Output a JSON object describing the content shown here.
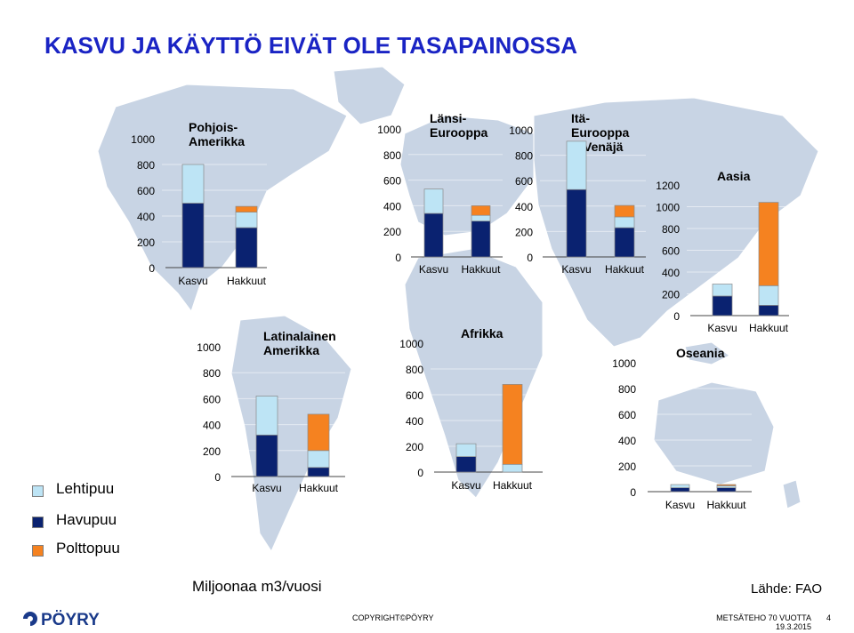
{
  "title": "KASVU JA KÄYTTÖ EIVÄT OLE TASAPAINOSSA",
  "legend": {
    "items": [
      {
        "label": "Lehtipuu",
        "color": "#bde4f5"
      },
      {
        "label": "Havupuu",
        "color": "#0a2270"
      },
      {
        "label": "Polttopuu",
        "color": "#f58220"
      }
    ]
  },
  "unit_label": "Miljoonaa m3/vuosi",
  "source_label": "Lähde: FAO",
  "copyright": "COPYRIGHT©PÖYRY",
  "footer": {
    "org": "METSÄTEHO 70 VUOTTA",
    "date": "19.3.2015",
    "page": "4"
  },
  "logo": {
    "text": "PÖYRY"
  },
  "colors": {
    "title": "#1a24c4",
    "lehtipuu": "#bde4f5",
    "havupuu": "#0a2270",
    "polttopuu": "#f58220",
    "map_land": "#c8d4e4"
  },
  "chart_data": [
    {
      "type": "bar",
      "title": "Pohjois-\nAmerikka",
      "categories": [
        "Kasvu",
        "Hakkuut"
      ],
      "ylim": [
        0,
        1000
      ],
      "yticks": [
        "1000",
        "800",
        "600",
        "400",
        "200",
        "0"
      ],
      "series": [
        {
          "name": "Havupuu",
          "values": [
            500,
            310
          ]
        },
        {
          "name": "Lehtipuu",
          "values": [
            300,
            120
          ]
        },
        {
          "name": "Polttopuu",
          "values": [
            0,
            45
          ]
        }
      ]
    },
    {
      "type": "bar",
      "title": "Länsi-\nEurooppa",
      "categories": [
        "Kasvu",
        "Hakkuut"
      ],
      "ylim": [
        0,
        1000
      ],
      "yticks": [
        "1000",
        "800",
        "600",
        "400",
        "200",
        "0"
      ],
      "series": [
        {
          "name": "Havupuu",
          "values": [
            340,
            280
          ]
        },
        {
          "name": "Lehtipuu",
          "values": [
            190,
            45
          ]
        },
        {
          "name": "Polttopuu",
          "values": [
            0,
            75
          ]
        }
      ]
    },
    {
      "type": "bar",
      "title": "Itä-\nEurooppa\n& Venäjä",
      "categories": [
        "Kasvu",
        "Hakkuut"
      ],
      "ylim": [
        0,
        1000
      ],
      "yticks": [
        "1000",
        "800",
        "600",
        "400",
        "200",
        "0"
      ],
      "series": [
        {
          "name": "Havupuu",
          "values": [
            530,
            230
          ]
        },
        {
          "name": "Lehtipuu",
          "values": [
            380,
            85
          ]
        },
        {
          "name": "Polttopuu",
          "values": [
            0,
            90
          ]
        }
      ]
    },
    {
      "type": "bar",
      "title": "Aasia",
      "categories": [
        "Kasvu",
        "Hakkuut"
      ],
      "ylim": [
        0,
        1200
      ],
      "yticks": [
        "1200",
        "1000",
        "800",
        "600",
        "400",
        "200",
        "0"
      ],
      "series": [
        {
          "name": "Havupuu",
          "values": [
            180,
            95
          ]
        },
        {
          "name": "Lehtipuu",
          "values": [
            110,
            180
          ]
        },
        {
          "name": "Polttopuu",
          "values": [
            0,
            765
          ]
        }
      ]
    },
    {
      "type": "bar",
      "title": "Latinalainen\nAmerikka",
      "categories": [
        "Kasvu",
        "Hakkuut"
      ],
      "ylim": [
        0,
        1000
      ],
      "yticks": [
        "1000",
        "800",
        "600",
        "400",
        "200",
        "0"
      ],
      "series": [
        {
          "name": "Havupuu",
          "values": [
            320,
            70
          ]
        },
        {
          "name": "Lehtipuu",
          "values": [
            300,
            130
          ]
        },
        {
          "name": "Polttopuu",
          "values": [
            0,
            280
          ]
        }
      ]
    },
    {
      "type": "bar",
      "title": "Afrikka",
      "categories": [
        "Kasvu",
        "Hakkuut"
      ],
      "ylim": [
        0,
        1000
      ],
      "yticks": [
        "1000",
        "800",
        "600",
        "400",
        "200",
        "0"
      ],
      "series": [
        {
          "name": "Havupuu",
          "values": [
            120,
            0
          ]
        },
        {
          "name": "Lehtipuu",
          "values": [
            100,
            60
          ]
        },
        {
          "name": "Polttopuu",
          "values": [
            0,
            620
          ]
        }
      ]
    },
    {
      "type": "bar",
      "title": "Oseania",
      "categories": [
        "Kasvu",
        "Hakkuut"
      ],
      "ylim": [
        0,
        1000
      ],
      "yticks": [
        "1000",
        "800",
        "600",
        "400",
        "200",
        "0"
      ],
      "series": [
        {
          "name": "Havupuu",
          "values": [
            30,
            30
          ]
        },
        {
          "name": "Lehtipuu",
          "values": [
            25,
            15
          ]
        },
        {
          "name": "Polttopuu",
          "values": [
            0,
            10
          ]
        }
      ]
    }
  ]
}
